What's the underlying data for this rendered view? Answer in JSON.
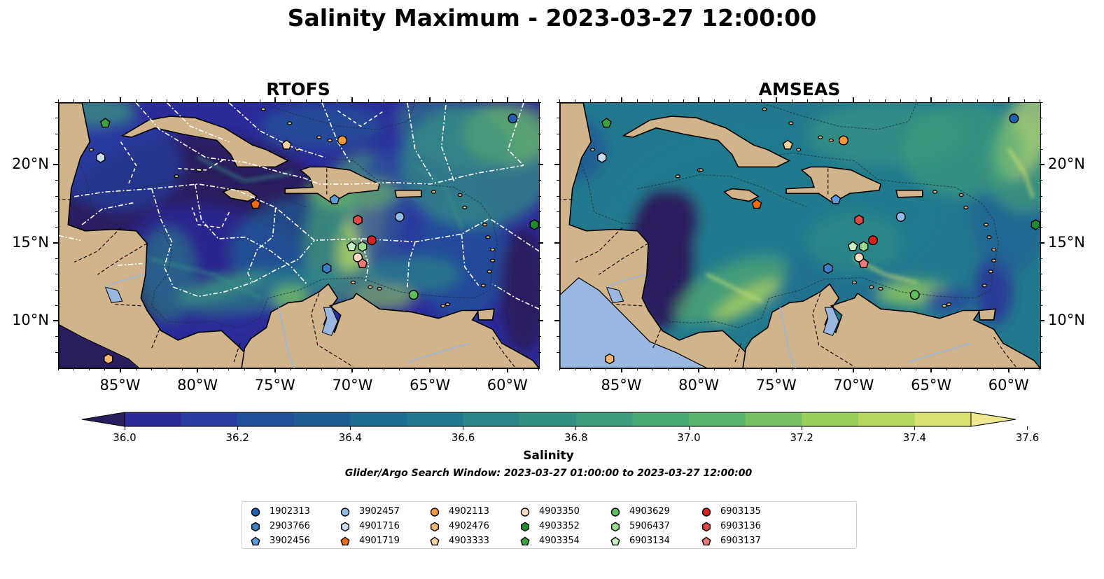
{
  "title": "Salinity Maximum - 2023-03-27 12:00:00",
  "panels": [
    {
      "title": "RTOFS"
    },
    {
      "title": "AMSEAS"
    }
  ],
  "axes": {
    "x_ticks": [
      "85°W",
      "80°W",
      "75°W",
      "70°W",
      "65°W",
      "60°W"
    ],
    "x_tick_values": [
      -85,
      -80,
      -75,
      -70,
      -65,
      -60
    ],
    "y_ticks": [
      "20°N",
      "15°N",
      "10°N"
    ],
    "y_tick_values": [
      20,
      15,
      10
    ],
    "lon_range": [
      -89,
      -58
    ],
    "lat_range": [
      7,
      24
    ]
  },
  "colorbar": {
    "label": "Salinity",
    "ticks": [
      "36.0",
      "36.2",
      "36.4",
      "36.6",
      "36.8",
      "37.0",
      "37.2",
      "37.4",
      "37.6"
    ],
    "range": [
      35.9,
      37.6
    ],
    "extend": "both",
    "colors": [
      "#2a1d5e",
      "#2b2a9a",
      "#273ea0",
      "#224f9a",
      "#1e5e95",
      "#1d6d91",
      "#22798d",
      "#2b8589",
      "#339184",
      "#3d9d7e",
      "#48a975",
      "#5ab56c",
      "#75c162",
      "#96cd5b",
      "#b6d75e",
      "#d6e16e",
      "#efe890"
    ]
  },
  "search_window": "Glider/Argo Search Window: 2023-03-27 01:00:00 to 2023-03-27 12:00:00",
  "legend": [
    {
      "id": "1902313",
      "marker": "circle",
      "color": "#1f5fb0"
    },
    {
      "id": "2903766",
      "marker": "hexagon",
      "color": "#3a7fc8"
    },
    {
      "id": "3902456",
      "marker": "pentagon",
      "color": "#5b9ee0"
    },
    {
      "id": "3902457",
      "marker": "circle",
      "color": "#8fbbe6"
    },
    {
      "id": "4901716",
      "marker": "hexagon",
      "color": "#c6ddf2"
    },
    {
      "id": "4901719",
      "marker": "pentagon",
      "color": "#f26a0f"
    },
    {
      "id": "4902113",
      "marker": "circle",
      "color": "#f59a3c"
    },
    {
      "id": "4902476",
      "marker": "hexagon",
      "color": "#f9b66e"
    },
    {
      "id": "4903333",
      "marker": "pentagon",
      "color": "#fbd09f"
    },
    {
      "id": "4903350",
      "marker": "circle",
      "color": "#fddcc3"
    },
    {
      "id": "4903352",
      "marker": "hexagon",
      "color": "#1f8a2e"
    },
    {
      "id": "4903354",
      "marker": "pentagon",
      "color": "#3aa33f"
    },
    {
      "id": "4903629",
      "marker": "circle",
      "color": "#5ebd5e"
    },
    {
      "id": "5906437",
      "marker": "hexagon",
      "color": "#98db8e"
    },
    {
      "id": "6903134",
      "marker": "pentagon",
      "color": "#c6f2bd"
    },
    {
      "id": "6903135",
      "marker": "circle",
      "color": "#d62021"
    },
    {
      "id": "6903136",
      "marker": "hexagon",
      "color": "#e04848"
    },
    {
      "id": "6903137",
      "marker": "pentagon",
      "color": "#ee7a78"
    }
  ],
  "float_positions": [
    {
      "id": "1902313",
      "lon": -59.7,
      "lat": 23.0
    },
    {
      "id": "2903766",
      "lon": -71.7,
      "lat": 13.4
    },
    {
      "id": "3902456",
      "lon": -71.2,
      "lat": 17.8
    },
    {
      "id": "3902457",
      "lon": -67.0,
      "lat": 16.7
    },
    {
      "id": "4901716",
      "lon": -86.3,
      "lat": 20.5
    },
    {
      "id": "4901719",
      "lon": -76.3,
      "lat": 17.5
    },
    {
      "id": "4902113",
      "lon": -70.7,
      "lat": 21.6
    },
    {
      "id": "4902476",
      "lon": -85.8,
      "lat": 7.6
    },
    {
      "id": "4903333",
      "lon": -74.3,
      "lat": 21.3
    },
    {
      "id": "4903350",
      "lon": -69.7,
      "lat": 14.1
    },
    {
      "id": "4903352",
      "lon": -58.3,
      "lat": 16.2
    },
    {
      "id": "4903354",
      "lon": -86.0,
      "lat": 22.7
    },
    {
      "id": "4903629",
      "lon": -66.1,
      "lat": 11.7
    },
    {
      "id": "5906437",
      "lon": -69.4,
      "lat": 14.8
    },
    {
      "id": "6903134",
      "lon": -70.1,
      "lat": 14.8
    },
    {
      "id": "6903135",
      "lon": -68.8,
      "lat": 15.2
    },
    {
      "id": "6903136",
      "lon": -69.7,
      "lat": 16.5
    },
    {
      "id": "6903137",
      "lon": -69.4,
      "lat": 13.7
    }
  ]
}
